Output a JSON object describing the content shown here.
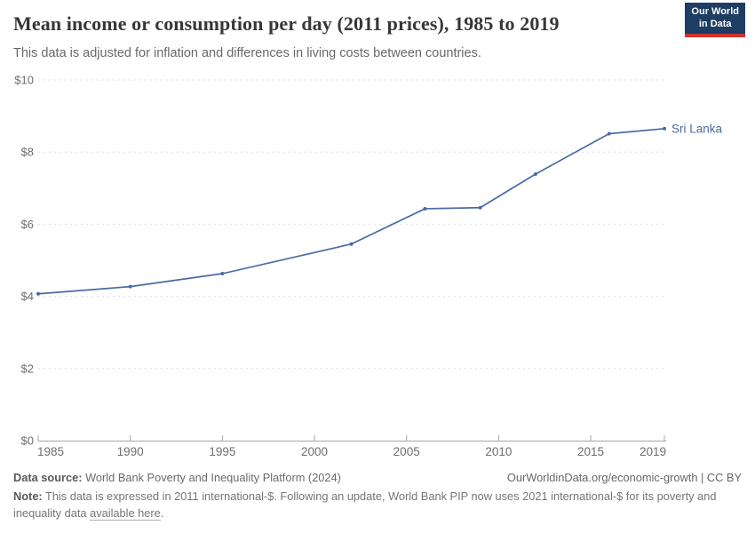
{
  "header": {
    "title": "Mean income or consumption per day (2011 prices), 1985 to 2019",
    "subtitle": "This data is adjusted for inflation and differences in living costs between countries.",
    "logo": {
      "line1": "Our World",
      "line2": "in Data",
      "bg_color": "#1d3d63",
      "accent_color": "#d1342a"
    }
  },
  "chart_data": {
    "type": "line",
    "series": [
      {
        "name": "Sri Lanka",
        "color": "#4a6aa3",
        "x": [
          1985,
          1990,
          1995,
          2002,
          2006,
          2009,
          2012,
          2016,
          2019
        ],
        "values": [
          4.07,
          4.27,
          4.63,
          5.45,
          6.43,
          6.46,
          7.39,
          8.51,
          8.65
        ]
      }
    ],
    "xlim": [
      1985,
      2019
    ],
    "ylim": [
      0,
      10
    ],
    "x_ticks": [
      1985,
      1990,
      1995,
      2000,
      2005,
      2010,
      2015,
      2019
    ],
    "y_ticks": [
      0,
      2,
      4,
      6,
      8,
      10
    ],
    "y_tick_labels": [
      "$0",
      "$2",
      "$4",
      "$6",
      "$8",
      "$10"
    ],
    "grid": "horizontal-dashed",
    "legend_position": "end-of-line-label",
    "end_label": "Sri Lanka",
    "gridline_color": "#dcdcdc",
    "axis_color": "#a6a6a6",
    "tick_label_color": "#6e6e6e"
  },
  "footer": {
    "source_label": "Data source:",
    "source_value": " World Bank Poverty and Inequality Platform (2024)",
    "credit": "OurWorldinData.org/economic-growth | CC BY",
    "note_label": "Note:",
    "note_before_link": " This data is expressed in 2011 international-$. Following an update, World Bank PIP now uses 2021 international-$ for its poverty and inequality data ",
    "note_link": "available here",
    "note_after_link": "."
  }
}
